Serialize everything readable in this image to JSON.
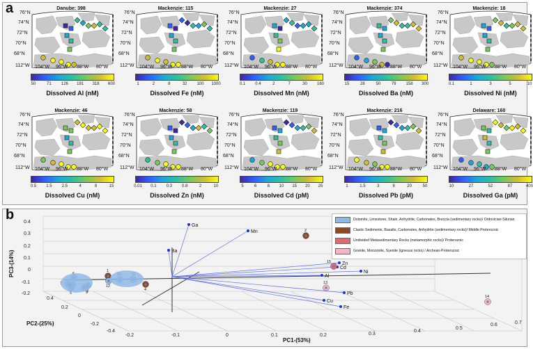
{
  "panel_a": {
    "label": "a",
    "lat_labels": [
      "76°N",
      "74°N",
      "72°N",
      "70°N",
      "68°N"
    ],
    "lon_labels": [
      "112°W",
      "104°W",
      "96°W",
      "88°W",
      "80°W"
    ],
    "maps": [
      {
        "title": "Danube: 398",
        "colorbar_label": "Dissolved Al (nM)",
        "ticks": [
          "50",
          "71",
          "126",
          "191",
          "318",
          "600"
        ]
      },
      {
        "title": "Mackenzie: 115",
        "colorbar_label": "Dissolved Fe (nM)",
        "ticks": [
          "1",
          "2",
          "8",
          "32",
          "100",
          "1000"
        ]
      },
      {
        "title": "Mackenzie: 27",
        "colorbar_label": "Dissolved Mn (nM)",
        "ticks": [
          "0.1",
          "0.4",
          "2",
          "7",
          "30",
          "160"
        ]
      },
      {
        "title": "Mackenzie: 374",
        "colorbar_label": "Dissolved Ba (nM)",
        "ticks": [
          "15",
          "28",
          "50",
          "79",
          "158",
          "300"
        ]
      },
      {
        "title": "Mackenzie: 18",
        "colorbar_label": "Dissolved Ni (nM)",
        "ticks": [
          "0.1",
          "1",
          "3",
          "5",
          "10"
        ]
      },
      {
        "title": "Mackenzie: 46",
        "colorbar_label": "Dissolved Cu (nM)",
        "ticks": [
          "0.5",
          "1.5",
          "2.5",
          "4",
          "8",
          "15"
        ]
      },
      {
        "title": "Mackenzie: 58",
        "colorbar_label": "Dissolved Zn (nM)",
        "ticks": [
          "0.01",
          "0.1",
          "0.3",
          "0.8",
          "2",
          "10"
        ]
      },
      {
        "title": "Mackenzie: 119",
        "colorbar_label": "Dissolved Cd (pM)",
        "ticks": [
          "5",
          "6",
          "8",
          "10",
          "15",
          "20",
          "25"
        ]
      },
      {
        "title": "Mackenzie: 216",
        "colorbar_label": "Dissolved Pb (pM)",
        "ticks": [
          "1",
          "1.5",
          "3",
          "8",
          "20",
          "50"
        ]
      },
      {
        "title": "Delaware: 160",
        "colorbar_label": "Dissolved Ga (pM)",
        "ticks": [
          "10",
          "27",
          "52",
          "87",
          "400"
        ]
      }
    ]
  },
  "panel_b": {
    "label": "b",
    "legend": [
      {
        "text": "Dolomite, Limestone, Shale, Anhydrite, Carbonates, Breccia (sedimentary rocks)/ Ordovician-Silurian",
        "color": "#8fb8e6"
      },
      {
        "text": "Clastic Sediments, Basalts, Carbonates, Anhydrite (sedimentary rocks)/ Middle Proterozoic",
        "color": "#8b4a24"
      },
      {
        "text": "Undivided Metasedimentary Rocks (metamorphic rocks)/ Proterozoic",
        "color": "#e46a6a"
      },
      {
        "text": "Granite, Monzonite, Syenite (igneous rocks) / Archean-Proterozoic",
        "color": "#f3b7c3"
      }
    ],
    "axes": {
      "pc3_label": "PC3-(14%)",
      "pc2_label": "PC2-(25%)",
      "pc1_label": "PC1-(53%)",
      "pc3_ticks": [
        "0.4",
        "0.3",
        "0.2",
        "0.1",
        "0",
        "-0.1",
        "-0.2"
      ],
      "pc2_ticks": [
        "0.4",
        "0.2",
        "0",
        "-0.2",
        "-0.4"
      ],
      "pc1_ticks": [
        "-0.2",
        "-0.1",
        "0",
        "0.1",
        "0.2",
        "0.3",
        "0.4",
        "0.5",
        "0.6",
        "0.7"
      ]
    },
    "loadings": [
      "Ga",
      "Mn",
      "Ba",
      "Zn",
      "Cd",
      "Ni",
      "Al",
      "Pb",
      "Cu",
      "Fe"
    ],
    "sites": [
      "1",
      "2",
      "3",
      "4",
      "5",
      "6",
      "7",
      "8",
      "9",
      "10",
      "11",
      "12",
      "13",
      "14",
      "15"
    ]
  }
}
